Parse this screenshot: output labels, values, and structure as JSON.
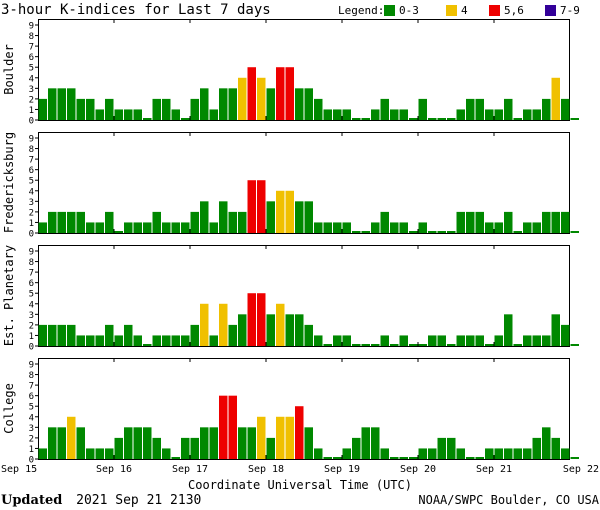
{
  "chart_data": {
    "type": "bar",
    "title": "3-hour K-indices for Last 7 days",
    "legend": {
      "title": "Legend:",
      "placement": "top-right",
      "items": [
        {
          "label": "0-3",
          "color": "#008800"
        },
        {
          "label": "4",
          "color": "#f0c000"
        },
        {
          "label": "5,6",
          "color": "#ee0000"
        },
        {
          "label": "7-9",
          "color": "#330099"
        }
      ]
    },
    "xlabel": "Coordinate Universal Time (UTC)",
    "x_ticks": [
      "Sep 15",
      "Sep 16",
      "Sep 17",
      "Sep 18",
      "Sep 19",
      "Sep 20",
      "Sep 21",
      "Sep 22"
    ],
    "y_ticks": [
      "0",
      "1",
      "2",
      "3",
      "4",
      "5",
      "6",
      "7",
      "8",
      "9"
    ],
    "ylim": [
      0,
      9
    ],
    "bars_per_day": 8,
    "grid": false,
    "panels": [
      {
        "name": "Boulder",
        "values": [
          2,
          3,
          3,
          3,
          2,
          2,
          1,
          2,
          1,
          1,
          1,
          0,
          2,
          2,
          1,
          0,
          2,
          3,
          1,
          3,
          3,
          4,
          5,
          4,
          3,
          5,
          5,
          3,
          3,
          2,
          1,
          1,
          1,
          0,
          0,
          1,
          2,
          1,
          1,
          0,
          2,
          0,
          0,
          0,
          1,
          2,
          2,
          1,
          1,
          2,
          0,
          1,
          1,
          2,
          4,
          2,
          0
        ]
      },
      {
        "name": "Fredericksburg",
        "values": [
          1,
          2,
          2,
          2,
          2,
          1,
          1,
          2,
          0,
          1,
          1,
          1,
          2,
          1,
          1,
          1,
          2,
          3,
          1,
          3,
          2,
          2,
          5,
          5,
          3,
          4,
          4,
          3,
          3,
          1,
          1,
          1,
          1,
          0,
          0,
          1,
          2,
          1,
          1,
          0,
          1,
          0,
          0,
          0,
          2,
          2,
          2,
          1,
          1,
          2,
          0,
          1,
          1,
          2,
          2,
          2,
          0
        ]
      },
      {
        "name": "Est. Planetary",
        "values": [
          2,
          2,
          2,
          2,
          1,
          1,
          1,
          2,
          1,
          2,
          1,
          0,
          1,
          1,
          1,
          1,
          2,
          4,
          1,
          4,
          2,
          3,
          5,
          5,
          3,
          4,
          3,
          3,
          2,
          1,
          0,
          1,
          1,
          0,
          0,
          0,
          1,
          0,
          1,
          0,
          0,
          1,
          1,
          0,
          1,
          1,
          1,
          0,
          1,
          3,
          0,
          1,
          1,
          1,
          3,
          2,
          0
        ]
      },
      {
        "name": "College",
        "values": [
          1,
          3,
          3,
          4,
          3,
          1,
          1,
          1,
          2,
          3,
          3,
          3,
          2,
          1,
          0,
          2,
          2,
          3,
          3,
          6,
          6,
          3,
          3,
          4,
          2,
          4,
          4,
          5,
          3,
          1,
          0,
          0,
          1,
          2,
          3,
          3,
          1,
          0,
          0,
          0,
          1,
          1,
          2,
          2,
          1,
          0,
          0,
          1,
          1,
          1,
          1,
          1,
          2,
          3,
          2,
          1,
          0
        ]
      }
    ]
  },
  "footer": {
    "updated_label": "Updated",
    "updated_value": "2021 Sep 21 2130",
    "credit": "NOAA/SWPC Boulder, CO USA"
  }
}
